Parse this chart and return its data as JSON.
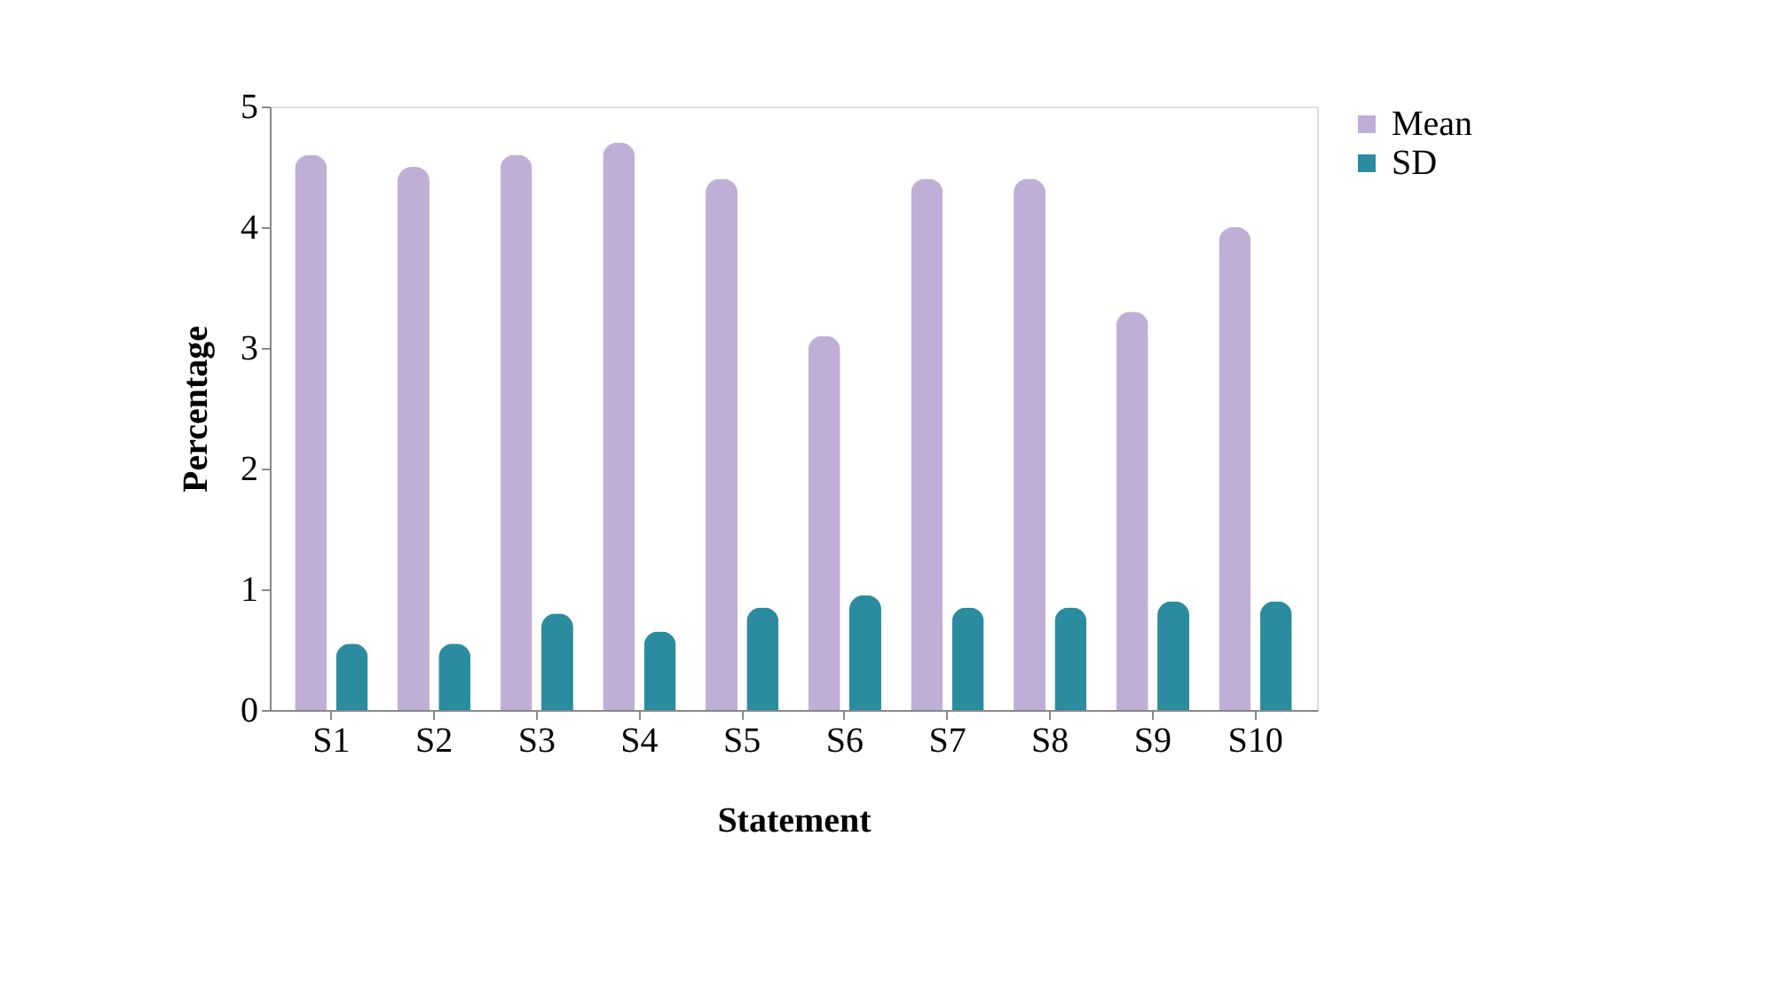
{
  "chart_data": {
    "type": "bar",
    "xlabel": "Statement",
    "ylabel": "Percentage",
    "categories": [
      "S1",
      "S2",
      "S3",
      "S4",
      "S5",
      "S6",
      "S7",
      "S8",
      "S9",
      "S10"
    ],
    "series": [
      {
        "name": "Mean",
        "color": "#bfaed6",
        "values": [
          4.6,
          4.5,
          4.6,
          4.7,
          4.4,
          3.1,
          4.4,
          4.4,
          3.3,
          4.0
        ]
      },
      {
        "name": "SD",
        "color": "#2a8c9e",
        "values": [
          0.55,
          0.55,
          0.8,
          0.65,
          0.85,
          0.95,
          0.85,
          0.85,
          0.9,
          0.9
        ]
      }
    ],
    "ylim": [
      0,
      5
    ],
    "yticks": [
      0,
      1,
      2,
      3,
      4,
      5
    ],
    "grid": false,
    "legend": "right"
  }
}
